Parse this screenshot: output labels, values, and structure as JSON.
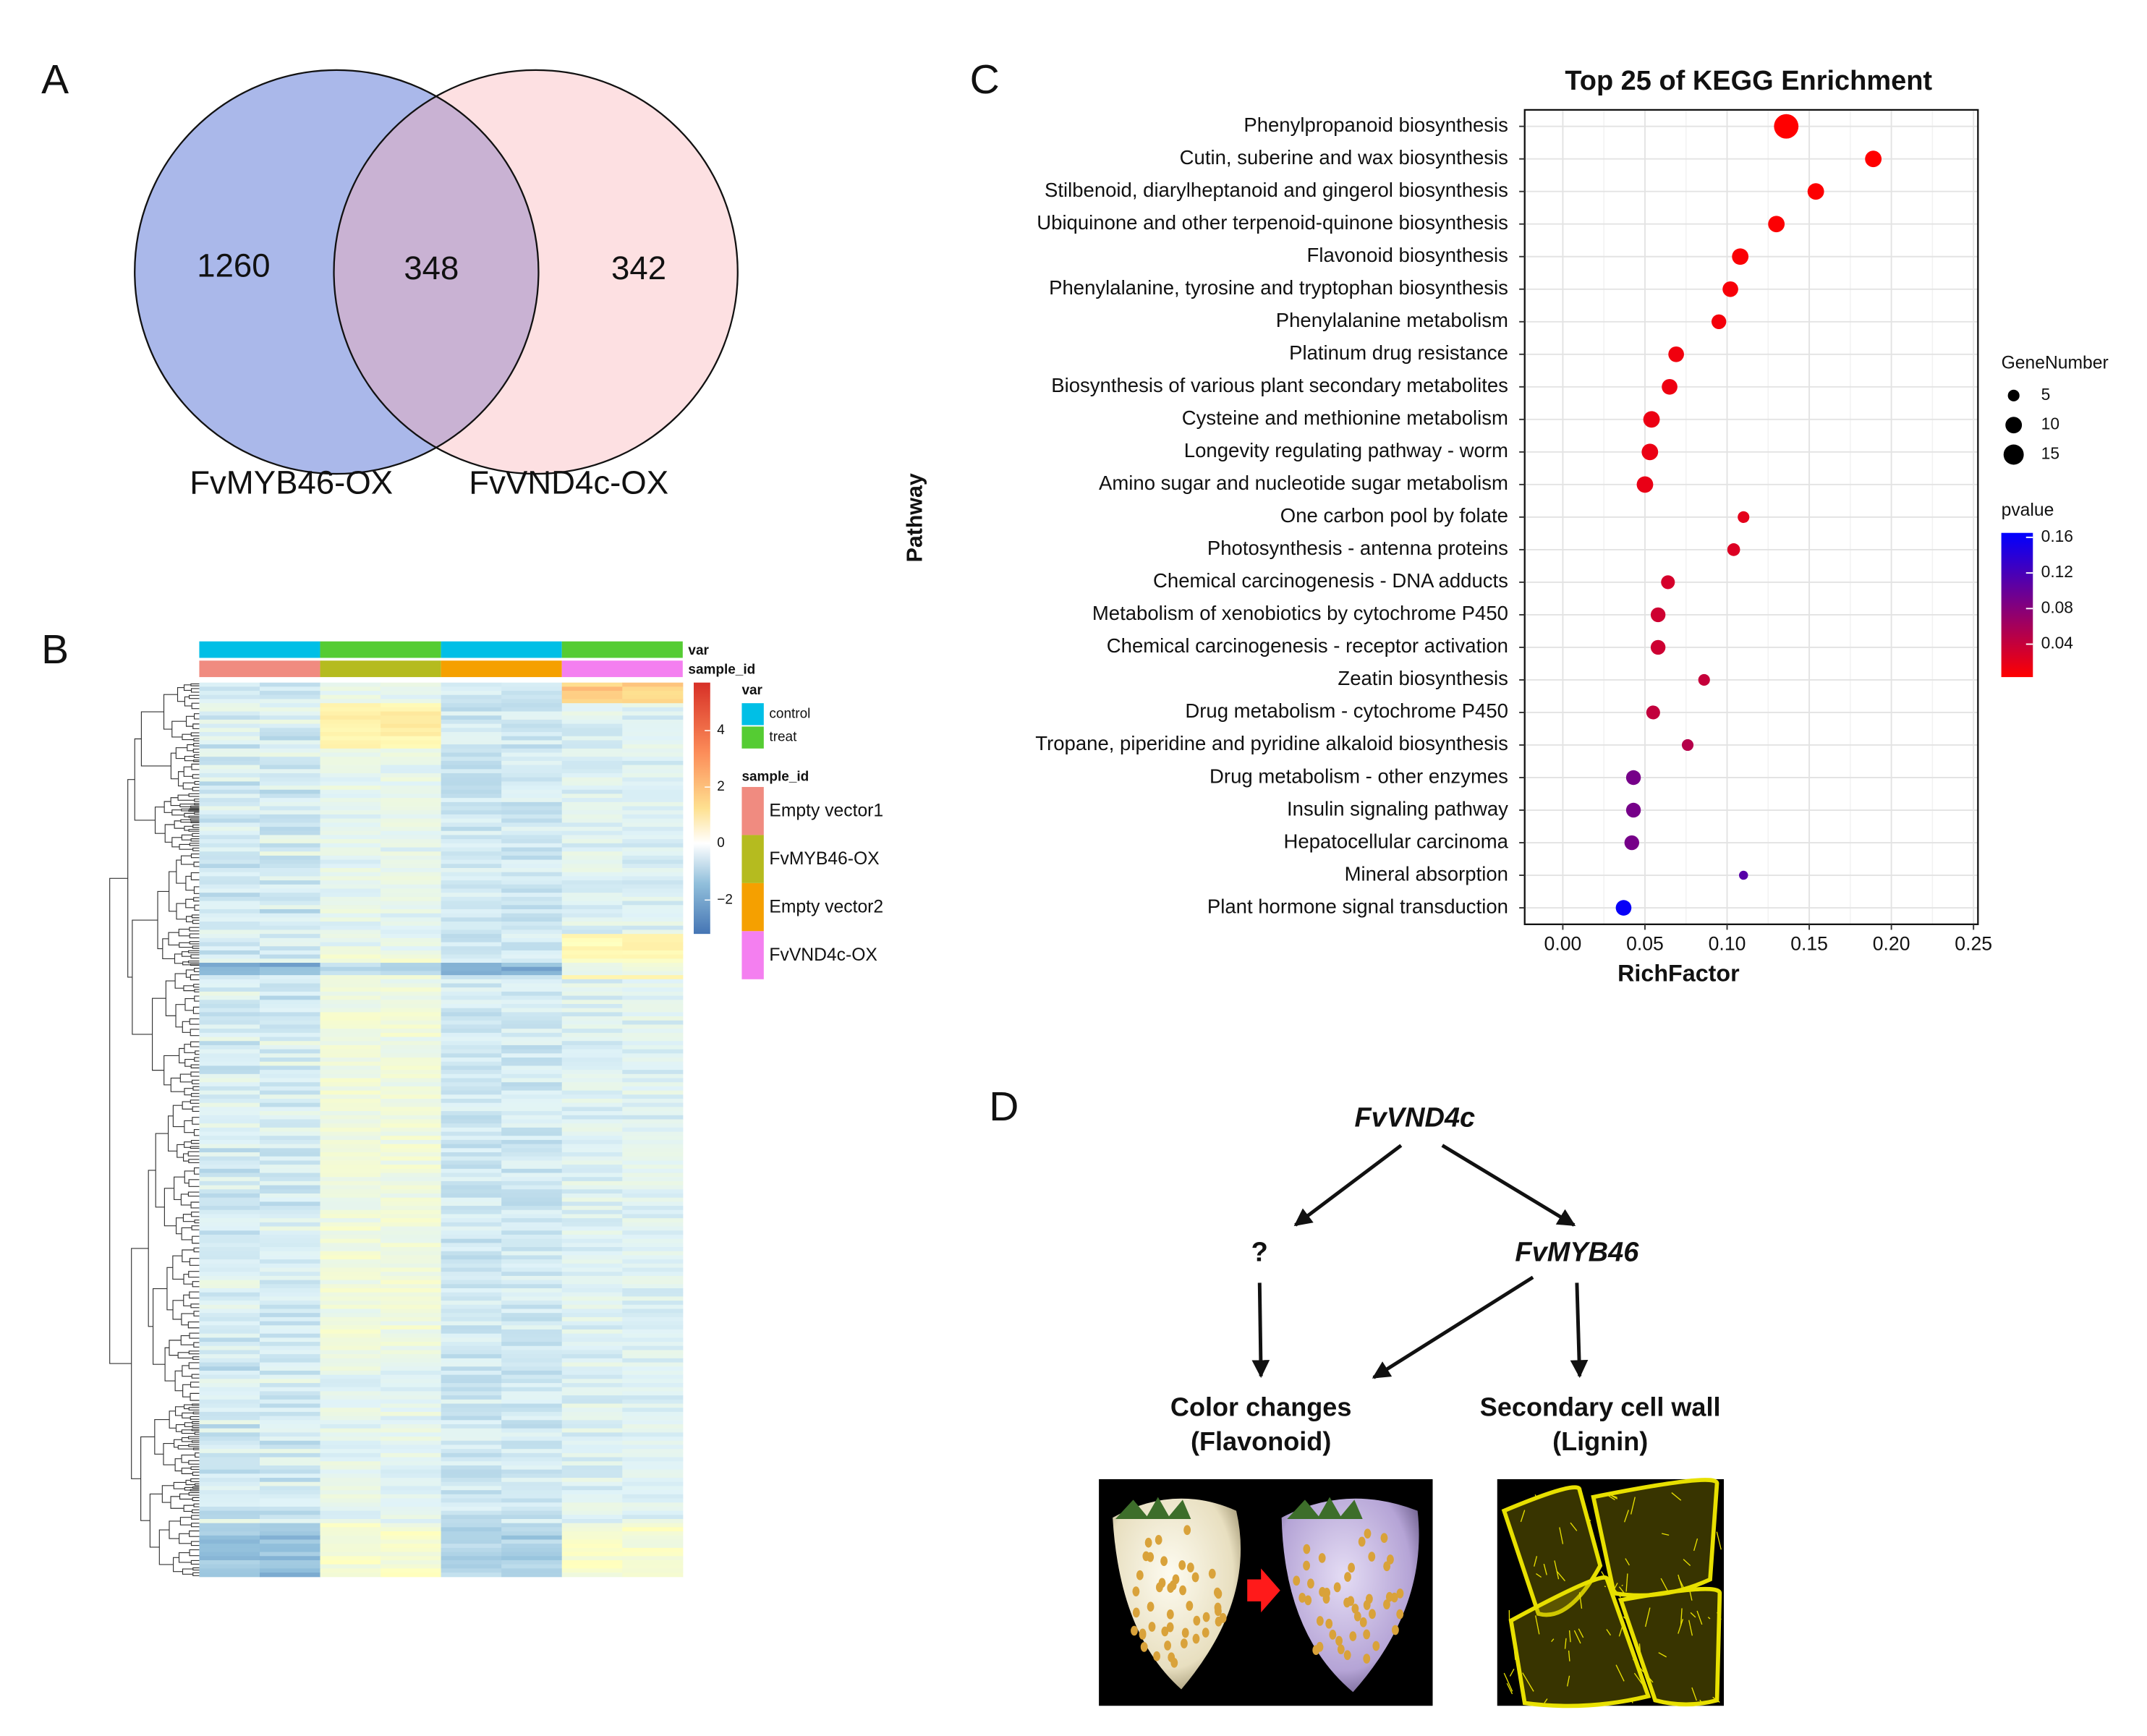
{
  "panels": {
    "a": "A",
    "b": "B",
    "c": "C",
    "d": "D"
  },
  "venn": {
    "sets": [
      "FvMYB46-OX",
      "FvVND4c-OX"
    ],
    "counts": {
      "only_first": 1260,
      "both": 348,
      "only_second": 342
    }
  },
  "heatmap": {
    "annotations": [
      "var",
      "sample_id"
    ],
    "var_legend": {
      "title": "var",
      "items": [
        "control",
        "treat"
      ],
      "colors": [
        "#00bfe6",
        "#55cc33"
      ]
    },
    "sample_legend": {
      "title": "sample_id",
      "items": [
        "Empty vector1",
        "FvMYB46-OX",
        "Empty vector2",
        "FvVND4c-OX"
      ],
      "colors": [
        "#f08b80",
        "#b5bb1f",
        "#f5a000",
        "#f47ff0"
      ]
    },
    "scale": {
      "lim": [
        -3.2,
        5.7
      ],
      "ticks": [
        {
          "value": -2,
          "label": "−2"
        },
        0,
        2,
        4
      ]
    }
  },
  "chart_data": {
    "type": "scatter",
    "title": "Top 25 of KEGG Enrichment",
    "xlabel": "RichFactor",
    "ylabel": "Pathway",
    "categories": [
      "Phenylpropanoid biosynthesis",
      "Cutin, suberine and wax biosynthesis",
      "Stilbenoid, diarylheptanoid and gingerol biosynthesis",
      "Ubiquinone and other terpenoid-quinone biosynthesis",
      "Flavonoid biosynthesis",
      "Phenylalanine, tyrosine and tryptophan biosynthesis",
      "Phenylalanine metabolism",
      "Platinum drug resistance",
      "Biosynthesis of various plant secondary metabolites",
      "Cysteine and methionine metabolism",
      "Longevity regulating pathway - worm",
      "Amino sugar and nucleotide sugar metabolism",
      "One carbon pool by folate",
      "Photosynthesis - antenna proteins",
      "Chemical carcinogenesis - DNA adducts",
      "Metabolism of xenobiotics by cytochrome P450",
      "Chemical carcinogenesis - receptor activation",
      "Zeatin biosynthesis",
      "Drug metabolism - cytochrome P450",
      "Tropane, piperidine and pyridine alkaloid biosynthesis",
      "Drug metabolism - other enzymes",
      "Insulin signaling pathway",
      "Hepatocellular carcinoma",
      "Mineral absorption",
      "Plant hormone signal transduction"
    ],
    "values": [
      0.136,
      0.189,
      0.154,
      0.13,
      0.108,
      0.102,
      0.095,
      0.069,
      0.065,
      0.054,
      0.053,
      0.05,
      0.11,
      0.104,
      0.064,
      0.058,
      0.058,
      0.086,
      0.055,
      0.076,
      0.043,
      0.043,
      0.042,
      0.11,
      0.037
    ],
    "gene_number": [
      22,
      10,
      10,
      10,
      10,
      9,
      8,
      9,
      9,
      10,
      10,
      10,
      5,
      6,
      7,
      8,
      8,
      5,
      7,
      5,
      8,
      8,
      8,
      3,
      9
    ],
    "pvalue": [
      0.001,
      0.002,
      0.004,
      0.005,
      0.006,
      0.008,
      0.01,
      0.012,
      0.014,
      0.015,
      0.016,
      0.017,
      0.02,
      0.025,
      0.03,
      0.034,
      0.035,
      0.04,
      0.042,
      0.05,
      0.09,
      0.09,
      0.09,
      0.11,
      0.16
    ],
    "xlim": [
      -0.0232,
      0.2527
    ],
    "xticks": [
      {
        "value": 0,
        "label": "0.00"
      },
      0.05,
      {
        "value": 0.1,
        "label": "0.10"
      },
      0.15,
      {
        "value": 0.2,
        "label": "0.20"
      },
      0.25
    ],
    "grid": true,
    "size_legend": {
      "title": "GeneNumber",
      "values": [
        5,
        10,
        15
      ]
    },
    "color_legend": {
      "title": "pvalue",
      "lim": [
        0.003,
        0.165
      ],
      "ticks": [
        0.04,
        0.08,
        0.12,
        0.16
      ],
      "color_low": "#ff0000",
      "color_high": "#0000ff"
    }
  },
  "diagram": {
    "nodes": {
      "top": "FvVND4c",
      "unknown": "?",
      "middle": "FvMYB46",
      "left": [
        "Color changes",
        "(Flavonoid)"
      ],
      "right": [
        "Secondary cell wall",
        "(Lignin)"
      ]
    }
  }
}
